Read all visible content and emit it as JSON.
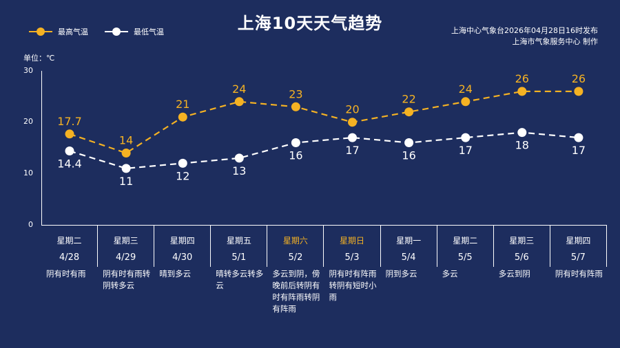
{
  "title": "上海10天天气趋势",
  "legend": {
    "high_label": "最高气温",
    "low_label": "最低气温"
  },
  "issuer": {
    "line1": "上海中心气象台2026年04月28日16时发布",
    "line2": "上海市气象服务中心  制作"
  },
  "unit_label": "单位：℃",
  "colors": {
    "background": "#1d2d5e",
    "high": "#f5b223",
    "low": "#ffffff",
    "weekend": "#f5b223"
  },
  "icons": {
    "legend_marker": "circle-dot"
  },
  "days": [
    {
      "weekday": "星期二",
      "date": "4/28",
      "desc": "阴有时有雨",
      "weekend": false
    },
    {
      "weekday": "星期三",
      "date": "4/29",
      "desc": "阴有时有雨转阴转多云",
      "weekend": false
    },
    {
      "weekday": "星期四",
      "date": "4/30",
      "desc": "晴到多云",
      "weekend": false
    },
    {
      "weekday": "星期五",
      "date": "5/1",
      "desc": "晴转多云转多云",
      "weekend": false
    },
    {
      "weekday": "星期六",
      "date": "5/2",
      "desc": "多云到阴，傍晚前后转阴有时有阵雨转阴有阵雨",
      "weekend": true
    },
    {
      "weekday": "星期日",
      "date": "5/3",
      "desc": "阴有时有阵雨转阴有短时小雨",
      "weekend": true
    },
    {
      "weekday": "星期一",
      "date": "5/4",
      "desc": "阴到多云",
      "weekend": false
    },
    {
      "weekday": "星期二",
      "date": "5/5",
      "desc": "多云",
      "weekend": false
    },
    {
      "weekday": "星期三",
      "date": "5/6",
      "desc": "多云到阴",
      "weekend": false
    },
    {
      "weekday": "星期四",
      "date": "5/7",
      "desc": "阴有时有阵雨",
      "weekend": false
    }
  ],
  "chart_data": {
    "type": "line",
    "title": "上海10天天气趋势",
    "categories": [
      "4/28",
      "4/29",
      "4/30",
      "5/1",
      "5/2",
      "5/3",
      "5/4",
      "5/5",
      "5/6",
      "5/7"
    ],
    "series": [
      {
        "name": "最高气温",
        "values": [
          17.7,
          14,
          21,
          24,
          23,
          20,
          22,
          24,
          26,
          26
        ],
        "labels": [
          "17.7",
          "14",
          "21",
          "24",
          "23",
          "20",
          "22",
          "24",
          "26",
          "26"
        ],
        "color": "#f5b223",
        "label_position": "above",
        "line_style": "dashed"
      },
      {
        "name": "最低气温",
        "values": [
          14.4,
          11,
          12,
          13,
          16,
          17,
          16,
          17,
          18,
          17
        ],
        "labels": [
          "14.4",
          "11",
          "12",
          "13",
          "16",
          "17",
          "16",
          "17",
          "18",
          "17"
        ],
        "color": "#ffffff",
        "label_position": "below",
        "line_style": "dashed"
      }
    ],
    "ylabel": "单位：℃",
    "ylim": [
      0,
      30
    ],
    "yticks": [
      0,
      10,
      20,
      30
    ],
    "ytick_labels": [
      "0",
      "10",
      "20",
      "30"
    ],
    "grid": false,
    "legend": "top-left"
  }
}
